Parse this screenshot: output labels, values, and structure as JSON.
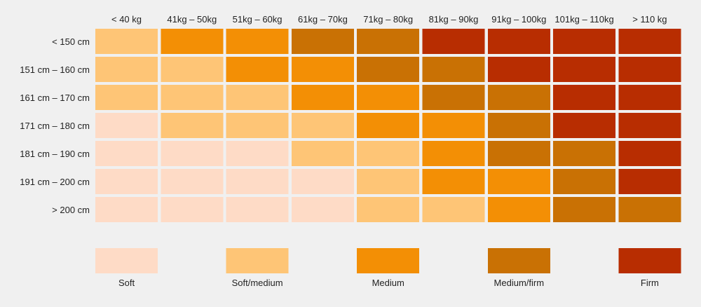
{
  "chart_data": {
    "type": "heatmap",
    "title": "",
    "x_categories": [
      "< 40 kg",
      "41kg – 50kg",
      "51kg – 60kg",
      "61kg – 70kg",
      "71kg – 80kg",
      "81kg – 90kg",
      "91kg – 100kg",
      "101kg – 110kg",
      "> 110 kg"
    ],
    "y_categories": [
      "< 150 cm",
      "151 cm – 160 cm",
      "161 cm – 170 cm",
      "171 cm – 180 cm",
      "181 cm – 190 cm",
      "191 cm – 200 cm",
      "> 200 cm"
    ],
    "levels": [
      {
        "name": "Soft",
        "color": "#fedbc6"
      },
      {
        "name": "Soft/medium",
        "color": "#fec576"
      },
      {
        "name": "Medium",
        "color": "#f38f05"
      },
      {
        "name": "Medium/firm",
        "color": "#c97104"
      },
      {
        "name": "Firm",
        "color": "#b82d01"
      }
    ],
    "values": [
      [
        1,
        2,
        2,
        3,
        3,
        4,
        4,
        4,
        4
      ],
      [
        1,
        1,
        2,
        2,
        3,
        3,
        4,
        4,
        4
      ],
      [
        1,
        1,
        1,
        2,
        2,
        3,
        3,
        4,
        4
      ],
      [
        0,
        1,
        1,
        1,
        2,
        2,
        3,
        4,
        4
      ],
      [
        0,
        0,
        0,
        1,
        1,
        2,
        3,
        3,
        4
      ],
      [
        0,
        0,
        0,
        0,
        1,
        2,
        2,
        3,
        4
      ],
      [
        0,
        0,
        0,
        0,
        1,
        1,
        2,
        3,
        3
      ]
    ],
    "legend_placement": "bottom"
  }
}
